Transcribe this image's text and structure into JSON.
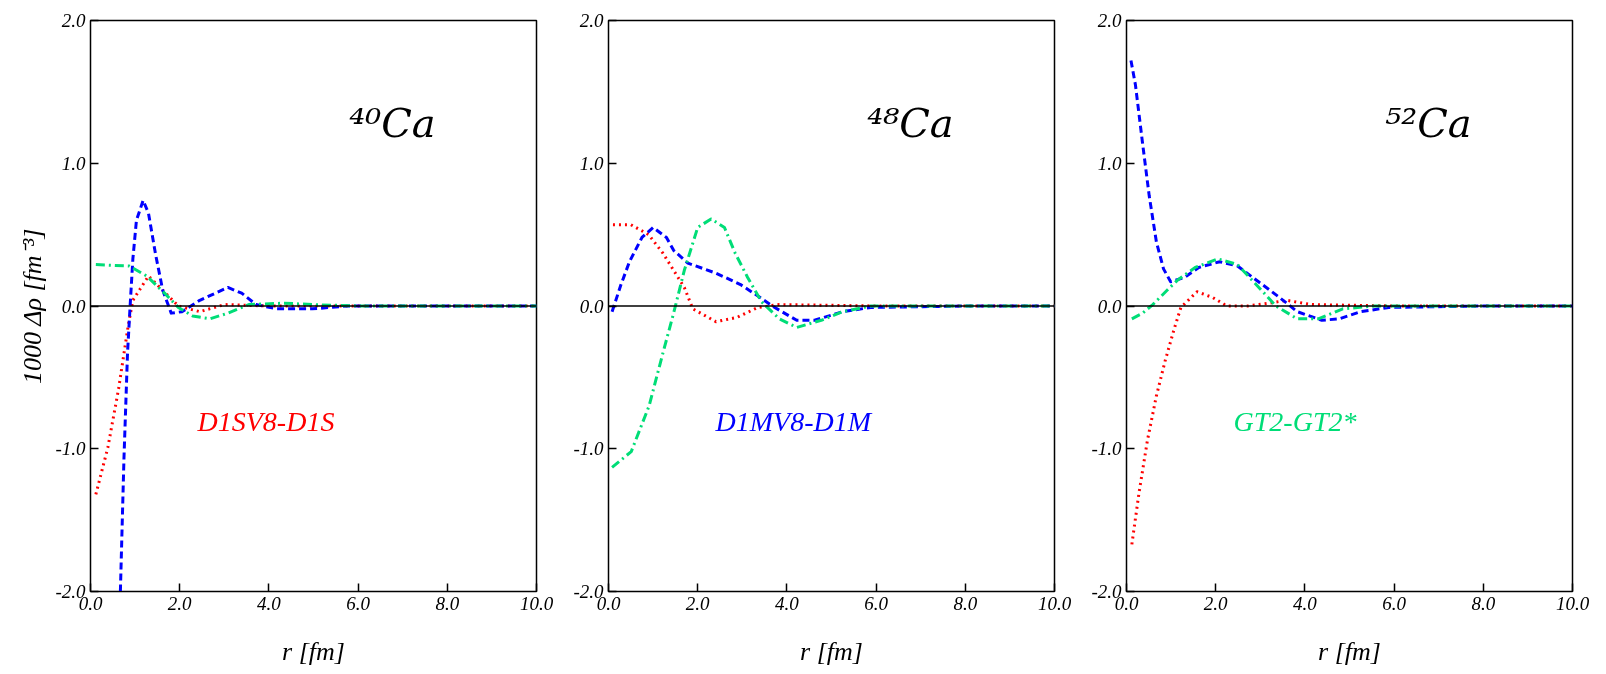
{
  "chart_data": [
    {
      "type": "line",
      "xlabel": "r [fm]",
      "ylabel": "1000 Δρ [fm⁻³]",
      "xlim": [
        0,
        10
      ],
      "ylim": [
        -2,
        2
      ],
      "xticks": [
        {
          "value": 0,
          "label": "0.0"
        },
        {
          "value": 2,
          "label": "2.0"
        },
        {
          "value": 4,
          "label": "4.0"
        },
        {
          "value": 6,
          "label": "6.0"
        },
        {
          "value": 8,
          "label": "8.0"
        },
        {
          "value": 10,
          "label": "10.0"
        }
      ],
      "yticks": [
        {
          "value": -2,
          "label": "-2.0"
        },
        {
          "value": -1,
          "label": "-1.0"
        },
        {
          "value": 0,
          "label": "0.0"
        },
        {
          "value": 1,
          "label": "1.0"
        },
        {
          "value": 2,
          "label": "2.0"
        }
      ],
      "grid": false,
      "annotations": [
        "⁴⁰Ca"
      ],
      "ref_lines": [
        {
          "axis": "y",
          "value": 0,
          "color": "#000000"
        }
      ],
      "series": [
        {
          "name": "D1SV8-D1S",
          "color": "#ff0000",
          "line_style": "dotted",
          "x": [
            0.12,
            0.39,
            0.63,
            0.85,
            0.95,
            1.3,
            1.62,
            1.97,
            2.45,
            3.0,
            4.0,
            6.0,
            8.0,
            10.0
          ],
          "values": [
            -1.32,
            -0.99,
            -0.58,
            -0.13,
            0.04,
            0.21,
            0.11,
            0,
            -0.04,
            0.01,
            0,
            0,
            0,
            0
          ]
        },
        {
          "color": "#0000ff",
          "line_style": "dashed",
          "x": [
            0.67,
            0.75,
            0.83,
            0.89,
            0.95,
            1.03,
            1.18,
            1.3,
            1.46,
            1.62,
            1.81,
            2.05,
            2.45,
            3.08,
            3.39,
            3.71,
            4.18,
            4.97,
            5.76,
            8.0,
            10.0
          ],
          "values": [
            -2.0,
            -1.07,
            -0.33,
            0.01,
            0.33,
            0.6,
            0.74,
            0.65,
            0.36,
            0.11,
            -0.05,
            -0.04,
            0.04,
            0.13,
            0.09,
            0.01,
            -0.02,
            -0.02,
            0,
            0,
            0
          ]
        },
        {
          "color": "#00dd77",
          "line_style": "dashdot",
          "x": [
            0.12,
            0.87,
            1.26,
            1.66,
            1.97,
            2.29,
            2.68,
            3.08,
            3.55,
            4.34,
            4.97,
            6.0,
            8.0,
            10.0
          ],
          "values": [
            0.29,
            0.28,
            0.21,
            0.09,
            -0.01,
            -0.07,
            -0.09,
            -0.05,
            0.01,
            0.02,
            0.01,
            0,
            0,
            0
          ]
        }
      ]
    },
    {
      "type": "line",
      "xlabel": "r [fm]",
      "xlim": [
        0,
        10
      ],
      "ylim": [
        -2,
        2
      ],
      "xticks": [
        {
          "value": 0,
          "label": "0.0"
        },
        {
          "value": 2,
          "label": "2.0"
        },
        {
          "value": 4,
          "label": "4.0"
        },
        {
          "value": 6,
          "label": "6.0"
        },
        {
          "value": 8,
          "label": "8.0"
        },
        {
          "value": 10,
          "label": "10.0"
        }
      ],
      "yticks": [
        {
          "value": -2,
          "label": "-2.0"
        },
        {
          "value": -1,
          "label": "-1.0"
        },
        {
          "value": 0,
          "label": "0.0"
        },
        {
          "value": 1,
          "label": "1.0"
        },
        {
          "value": 2,
          "label": "2.0"
        }
      ],
      "grid": false,
      "annotations": [
        "⁴⁸Ca"
      ],
      "ref_lines": [
        {
          "axis": "y",
          "value": 0,
          "color": "#000000"
        }
      ],
      "series": [
        {
          "color": "#ff0000",
          "line_style": "dotted",
          "x": [
            0.1,
            0.5,
            0.9,
            1.22,
            1.46,
            1.7,
            1.89,
            2.41,
            2.88,
            3.35,
            3.83,
            6.0,
            8.0,
            10.0
          ],
          "values": [
            0.57,
            0.57,
            0.5,
            0.37,
            0.25,
            0.13,
            -0.02,
            -0.11,
            -0.08,
            -0.01,
            0.01,
            0,
            0,
            0
          ]
        },
        {
          "name": "D1MV8-D1M",
          "color": "#0000ff",
          "line_style": "dashed",
          "x": [
            0.08,
            0.28,
            0.47,
            0.75,
            1.0,
            1.3,
            1.46,
            1.78,
            2.41,
            2.96,
            3.35,
            3.67,
            4.22,
            4.62,
            5.25,
            5.88,
            8.0,
            10.0
          ],
          "values": [
            -0.04,
            0.15,
            0.31,
            0.48,
            0.55,
            0.48,
            0.39,
            0.3,
            0.23,
            0.15,
            0.07,
            0,
            -0.1,
            -0.1,
            -0.04,
            -0.01,
            0,
            0
          ]
        },
        {
          "color": "#00dd77",
          "line_style": "dashdot",
          "x": [
            0.08,
            0.51,
            0.91,
            1.22,
            1.46,
            1.7,
            2.0,
            2.3,
            2.6,
            2.84,
            3.12,
            3.43,
            3.83,
            4.22,
            4.77,
            5.25,
            5.88,
            8.0,
            10.0
          ],
          "values": [
            -1.13,
            -1.02,
            -0.7,
            -0.33,
            -0.05,
            0.25,
            0.55,
            0.61,
            0.55,
            0.37,
            0.2,
            0.03,
            -0.09,
            -0.15,
            -0.1,
            -0.04,
            0,
            0,
            0
          ]
        }
      ]
    },
    {
      "type": "line",
      "xlabel": "r [fm]",
      "xlim": [
        0,
        10
      ],
      "ylim": [
        -2,
        2
      ],
      "xticks": [
        {
          "value": 0,
          "label": "0.0"
        },
        {
          "value": 2,
          "label": "2.0"
        },
        {
          "value": 4,
          "label": "4.0"
        },
        {
          "value": 6,
          "label": "6.0"
        },
        {
          "value": 8,
          "label": "8.0"
        },
        {
          "value": 10,
          "label": "10.0"
        }
      ],
      "yticks": [
        {
          "value": -2,
          "label": "-2.0"
        },
        {
          "value": -1,
          "label": "-1.0"
        },
        {
          "value": 0,
          "label": "0.0"
        },
        {
          "value": 1,
          "label": "1.0"
        },
        {
          "value": 2,
          "label": "2.0"
        }
      ],
      "grid": false,
      "annotations": [
        "⁵²Ca"
      ],
      "ref_lines": [
        {
          "axis": "y",
          "value": 0,
          "color": "#000000"
        }
      ],
      "series": [
        {
          "color": "#ff0000",
          "line_style": "dotted",
          "x": [
            0.12,
            0.28,
            0.47,
            0.67,
            0.87,
            1.07,
            1.22,
            1.58,
            1.93,
            2.25,
            2.72,
            3.2,
            3.59,
            4.14,
            6.0,
            8.0,
            10.0
          ],
          "values": [
            -1.67,
            -1.31,
            -0.94,
            -0.63,
            -0.38,
            -0.16,
            -0.01,
            0.1,
            0.06,
            0,
            0,
            0.02,
            0.04,
            0.01,
            0,
            0,
            0
          ]
        },
        {
          "color": "#0000ff",
          "line_style": "dashed",
          "x": [
            0.1,
            0.2,
            0.36,
            0.51,
            0.67,
            0.83,
            0.99,
            1.3,
            1.62,
            2.09,
            2.49,
            2.96,
            3.43,
            3.83,
            4.38,
            4.77,
            5.25,
            5.88,
            8.0,
            10.0
          ],
          "values": [
            1.72,
            1.55,
            1.14,
            0.77,
            0.45,
            0.26,
            0.17,
            0.2,
            0.27,
            0.31,
            0.28,
            0.17,
            0.06,
            -0.04,
            -0.1,
            -0.09,
            -0.04,
            -0.01,
            0,
            0
          ]
        },
        {
          "name": "GT2-GT2*",
          "color": "#00dd77",
          "line_style": "dashdot",
          "x": [
            0.12,
            0.36,
            0.59,
            0.91,
            1.14,
            1.54,
            2.05,
            2.49,
            2.88,
            3.35,
            3.83,
            4.3,
            4.85,
            5.56,
            8.0,
            10.0
          ],
          "values": [
            -0.09,
            -0.05,
            0.01,
            0.11,
            0.18,
            0.27,
            0.33,
            0.29,
            0.16,
            0,
            -0.09,
            -0.09,
            -0.02,
            0,
            0,
            0
          ]
        }
      ]
    }
  ]
}
